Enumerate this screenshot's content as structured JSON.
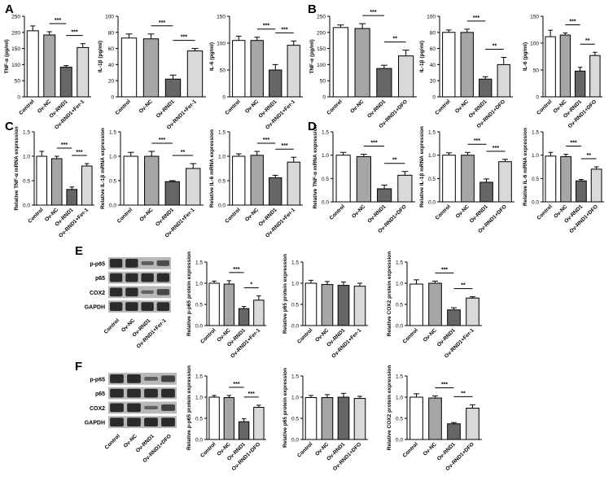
{
  "colors": {
    "Control": "#ffffff",
    "Ov-NC": "#a6a6a6",
    "Ov-RND1": "#666666",
    "treat": "#d9d9d9",
    "edge": "#000000",
    "blot_bg": "#b8b8b8",
    "band": "#2b2b2b"
  },
  "panels": [
    {
      "letter": "A"
    },
    {
      "letter": "B"
    },
    {
      "letter": "C"
    },
    {
      "letter": "D"
    },
    {
      "letter": "E"
    },
    {
      "letter": "F"
    }
  ],
  "blots": [
    {
      "panel": "E",
      "rows": [
        "p-p65",
        "p65",
        "COX2",
        "GAPDH"
      ],
      "lanes": [
        "Control",
        "Ov-NC",
        "Ov-RND1",
        "Ov-RND1+Fer-1"
      ],
      "intensity": [
        [
          1.0,
          1.0,
          0.45,
          0.65
        ],
        [
          1.0,
          1.0,
          1.0,
          1.0
        ],
        [
          1.0,
          1.0,
          0.4,
          0.7
        ],
        [
          1.0,
          1.0,
          1.0,
          1.0
        ]
      ]
    },
    {
      "panel": "F",
      "rows": [
        "p-p65",
        "p65",
        "COX2",
        "GAPDH"
      ],
      "lanes": [
        "Control",
        "Ov-NC",
        "Ov-RND1",
        "Ov-RND1+DFO"
      ],
      "intensity": [
        [
          1.0,
          1.0,
          0.45,
          0.75
        ],
        [
          1.0,
          1.0,
          1.0,
          1.0
        ],
        [
          1.0,
          1.0,
          0.4,
          0.75
        ],
        [
          1.0,
          1.0,
          1.0,
          1.0
        ]
      ]
    }
  ],
  "chart_data": [
    {
      "panel": "A",
      "type": "bar",
      "categories": [
        "Control",
        "Ov-NC",
        "Ov-RND1",
        "Ov-RND1+Fer-1"
      ],
      "values": [
        205,
        192,
        92,
        153
      ],
      "errors": [
        15,
        10,
        5,
        12
      ],
      "ylabel": "TNF-α (pg/ml)",
      "ylim": [
        0,
        250
      ],
      "yticks": [
        0,
        50,
        100,
        150,
        200,
        250
      ],
      "sig": [
        {
          "from": 1,
          "to": 2,
          "text": "***"
        },
        {
          "from": 2,
          "to": 3,
          "text": "***"
        }
      ]
    },
    {
      "panel": "A",
      "type": "bar",
      "categories": [
        "Control",
        "Ov-NC",
        "Ov-RND1",
        "Ov-RND1+Fer-1"
      ],
      "values": [
        73,
        72,
        22,
        57
      ],
      "errors": [
        5,
        6,
        5,
        3
      ],
      "ylabel": "IL-1β (pg/ml)",
      "ylim": [
        0,
        100
      ],
      "yticks": [
        0,
        20,
        40,
        60,
        80,
        100
      ],
      "sig": [
        {
          "from": 1,
          "to": 2,
          "text": "***"
        },
        {
          "from": 2,
          "to": 3,
          "text": "***"
        }
      ]
    },
    {
      "panel": "A",
      "type": "bar",
      "categories": [
        "Control",
        "Ov-NC",
        "Ov-RND1",
        "Ov-RND1+Fer-1"
      ],
      "values": [
        105,
        105,
        50,
        96
      ],
      "errors": [
        8,
        6,
        10,
        8
      ],
      "ylabel": "IL-6 (pg/ml)",
      "ylim": [
        0,
        150
      ],
      "yticks": [
        0,
        50,
        100,
        150
      ],
      "sig": [
        {
          "from": 1,
          "to": 2,
          "text": "***"
        },
        {
          "from": 2,
          "to": 3,
          "text": "***"
        }
      ]
    },
    {
      "panel": "B",
      "type": "bar",
      "categories": [
        "Control",
        "Ov-NC",
        "Ov-RND1",
        "Ov-RND1+DFO"
      ],
      "values": [
        215,
        212,
        88,
        127
      ],
      "errors": [
        8,
        15,
        10,
        18
      ],
      "ylabel": "TNF-α (pg/ml)",
      "ylim": [
        0,
        250
      ],
      "yticks": [
        0,
        50,
        100,
        150,
        200,
        250
      ],
      "sig": [
        {
          "from": 1,
          "to": 2,
          "text": "***"
        },
        {
          "from": 2,
          "to": 3,
          "text": "**"
        }
      ]
    },
    {
      "panel": "B",
      "type": "bar",
      "categories": [
        "Control",
        "Ov-NC",
        "Ov-RND1",
        "Ov-RND1+DFO"
      ],
      "values": [
        80,
        80,
        22,
        40
      ],
      "errors": [
        3,
        4,
        3,
        9
      ],
      "ylabel": "IL-1β (pg/ml)",
      "ylim": [
        0,
        100
      ],
      "yticks": [
        0,
        20,
        40,
        60,
        80,
        100
      ],
      "sig": [
        {
          "from": 1,
          "to": 2,
          "text": "***"
        },
        {
          "from": 2,
          "to": 3,
          "text": "**"
        }
      ]
    },
    {
      "panel": "B",
      "type": "bar",
      "categories": [
        "Control",
        "Ov-NC",
        "Ov-RND1",
        "Ov-RND1+DFO"
      ],
      "values": [
        112,
        115,
        48,
        77
      ],
      "errors": [
        12,
        4,
        7,
        6
      ],
      "ylabel": "IL-6 (pg/ml)",
      "ylim": [
        0,
        150
      ],
      "yticks": [
        0,
        50,
        100,
        150
      ],
      "sig": [
        {
          "from": 1,
          "to": 2,
          "text": "***"
        },
        {
          "from": 2,
          "to": 3,
          "text": "**"
        }
      ]
    },
    {
      "panel": "C",
      "type": "bar",
      "categories": [
        "Control",
        "Ov-NC",
        "Ov-RND1",
        "Ov-RND1+Fer-1"
      ],
      "values": [
        1.0,
        0.95,
        0.32,
        0.8
      ],
      "errors": [
        0.1,
        0.05,
        0.05,
        0.05
      ],
      "ylabel": "Relative TNF-α mRNA expression",
      "ylim": [
        0,
        1.5
      ],
      "yticks": [
        0.0,
        0.5,
        1.0,
        1.5
      ],
      "sig": [
        {
          "from": 1,
          "to": 2,
          "text": "***"
        },
        {
          "from": 2,
          "to": 3,
          "text": "***"
        }
      ]
    },
    {
      "panel": "C",
      "type": "bar",
      "categories": [
        "Control",
        "Ov-NC",
        "Ov-RND1",
        "Ov-RND1+Fer-1"
      ],
      "values": [
        1.0,
        1.0,
        0.48,
        0.75
      ],
      "errors": [
        0.08,
        0.1,
        0.02,
        0.1
      ],
      "ylabel": "Relative IL-1β mRNA expression",
      "ylim": [
        0,
        1.5
      ],
      "yticks": [
        0.0,
        0.5,
        1.0,
        1.5
      ],
      "sig": [
        {
          "from": 1,
          "to": 2,
          "text": "***"
        },
        {
          "from": 2,
          "to": 3,
          "text": "**"
        }
      ]
    },
    {
      "panel": "C",
      "type": "bar",
      "categories": [
        "Control",
        "Ov-NC",
        "Ov-RND1",
        "Ov-RND1+Fer-1"
      ],
      "values": [
        1.0,
        1.02,
        0.56,
        0.88
      ],
      "errors": [
        0.05,
        0.08,
        0.05,
        0.1
      ],
      "ylabel": "Relative IL-6 mRNA expression",
      "ylim": [
        0,
        1.5
      ],
      "yticks": [
        0.0,
        0.5,
        1.0,
        1.5
      ],
      "sig": [
        {
          "from": 1,
          "to": 2,
          "text": "***"
        },
        {
          "from": 2,
          "to": 3,
          "text": "***"
        }
      ]
    },
    {
      "panel": "D",
      "type": "bar",
      "categories": [
        "Control",
        "Ov-NC",
        "Ov-RND1",
        "Ov-RND1+DFO"
      ],
      "values": [
        1.0,
        0.97,
        0.28,
        0.57
      ],
      "errors": [
        0.06,
        0.05,
        0.08,
        0.08
      ],
      "ylabel": "Relative TNF-α mRNA expression",
      "ylim": [
        0,
        1.5
      ],
      "yticks": [
        0.0,
        0.5,
        1.0,
        1.5
      ],
      "sig": [
        {
          "from": 1,
          "to": 2,
          "text": "***"
        },
        {
          "from": 2,
          "to": 3,
          "text": "**"
        }
      ]
    },
    {
      "panel": "D",
      "type": "bar",
      "categories": [
        "Control",
        "Ov-NC",
        "Ov-RND1",
        "Ov-RND1+DFO"
      ],
      "values": [
        1.0,
        1.0,
        0.42,
        0.86
      ],
      "errors": [
        0.05,
        0.06,
        0.07,
        0.05
      ],
      "ylabel": "Relative IL-1β mRNA expression",
      "ylim": [
        0,
        1.5
      ],
      "yticks": [
        0.0,
        0.5,
        1.0,
        1.5
      ],
      "sig": [
        {
          "from": 1,
          "to": 2,
          "text": "***"
        },
        {
          "from": 2,
          "to": 3,
          "text": "***"
        }
      ]
    },
    {
      "panel": "D",
      "type": "bar",
      "categories": [
        "Control",
        "Ov-NC",
        "Ov-RND1",
        "Ov-RND1+DFO"
      ],
      "values": [
        0.98,
        0.97,
        0.45,
        0.7
      ],
      "errors": [
        0.08,
        0.05,
        0.03,
        0.05
      ],
      "ylabel": "Relative IL-6 mRNA expression",
      "ylim": [
        0,
        1.5
      ],
      "yticks": [
        0.0,
        0.5,
        1.0,
        1.5
      ],
      "sig": [
        {
          "from": 1,
          "to": 2,
          "text": "***"
        },
        {
          "from": 2,
          "to": 3,
          "text": "**"
        }
      ]
    },
    {
      "panel": "E",
      "type": "bar",
      "categories": [
        "Control",
        "Ov-NC",
        "Ov-RND1",
        "Ov-RND1+Fer-1"
      ],
      "values": [
        1.0,
        0.98,
        0.4,
        0.6
      ],
      "errors": [
        0.05,
        0.08,
        0.05,
        0.1
      ],
      "ylabel": "Relative p-p65 protein expression",
      "ylim": [
        0,
        1.5
      ],
      "yticks": [
        0.0,
        0.5,
        1.0,
        1.5
      ],
      "sig": [
        {
          "from": 1,
          "to": 2,
          "text": "***"
        },
        {
          "from": 2,
          "to": 3,
          "text": "*"
        }
      ]
    },
    {
      "panel": "E",
      "type": "bar",
      "categories": [
        "Control",
        "Ov-NC",
        "Ov-RND1",
        "Ov-RND1+Fer-1"
      ],
      "values": [
        1.0,
        0.97,
        0.95,
        0.93
      ],
      "errors": [
        0.07,
        0.07,
        0.08,
        0.07
      ],
      "ylabel": "Relative p65 protein expression",
      "ylim": [
        0,
        1.5
      ],
      "yticks": [
        0.0,
        0.5,
        1.0,
        1.5
      ],
      "sig": []
    },
    {
      "panel": "E",
      "type": "bar",
      "categories": [
        "Control",
        "Ov-NC",
        "Ov-RND1",
        "Ov-RND1+Fer-1"
      ],
      "values": [
        0.98,
        1.0,
        0.37,
        0.65
      ],
      "errors": [
        0.1,
        0.05,
        0.05,
        0.03
      ],
      "ylabel": "Relative COX2 protein expression",
      "ylim": [
        0,
        1.5
      ],
      "yticks": [
        0.0,
        0.5,
        1.0,
        1.5
      ],
      "sig": [
        {
          "from": 1,
          "to": 2,
          "text": "***"
        },
        {
          "from": 2,
          "to": 3,
          "text": "**"
        }
      ]
    },
    {
      "panel": "F",
      "type": "bar",
      "categories": [
        "Control",
        "Ov-NC",
        "Ov-RND1",
        "Ov-RND1+DFO"
      ],
      "values": [
        1.0,
        0.99,
        0.42,
        0.76
      ],
      "errors": [
        0.04,
        0.05,
        0.07,
        0.05
      ],
      "ylabel": "Relative p-p65 protein expression",
      "ylim": [
        0,
        1.5
      ],
      "yticks": [
        0.0,
        0.5,
        1.0,
        1.5
      ],
      "sig": [
        {
          "from": 1,
          "to": 2,
          "text": "***"
        },
        {
          "from": 2,
          "to": 3,
          "text": "***"
        }
      ]
    },
    {
      "panel": "F",
      "type": "bar",
      "categories": [
        "Control",
        "Ov-NC",
        "Ov-RND1",
        "Ov-RND1+DFO"
      ],
      "values": [
        0.99,
        0.99,
        1.0,
        0.97
      ],
      "errors": [
        0.05,
        0.07,
        0.09,
        0.05
      ],
      "ylabel": "Relative p65 protein expression",
      "ylim": [
        0,
        1.5
      ],
      "yticks": [
        0.0,
        0.5,
        1.0,
        1.5
      ],
      "sig": []
    },
    {
      "panel": "F",
      "type": "bar",
      "categories": [
        "Control",
        "Ov-NC",
        "Ov-RND1",
        "Ov-RND1+DFO"
      ],
      "values": [
        1.0,
        0.98,
        0.37,
        0.74
      ],
      "errors": [
        0.08,
        0.05,
        0.03,
        0.08
      ],
      "ylabel": "Relative COX2 protein expression",
      "ylim": [
        0,
        1.5
      ],
      "yticks": [
        0.0,
        0.5,
        1.0,
        1.5
      ],
      "sig": [
        {
          "from": 1,
          "to": 2,
          "text": "***"
        },
        {
          "from": 2,
          "to": 3,
          "text": "**"
        }
      ]
    }
  ]
}
